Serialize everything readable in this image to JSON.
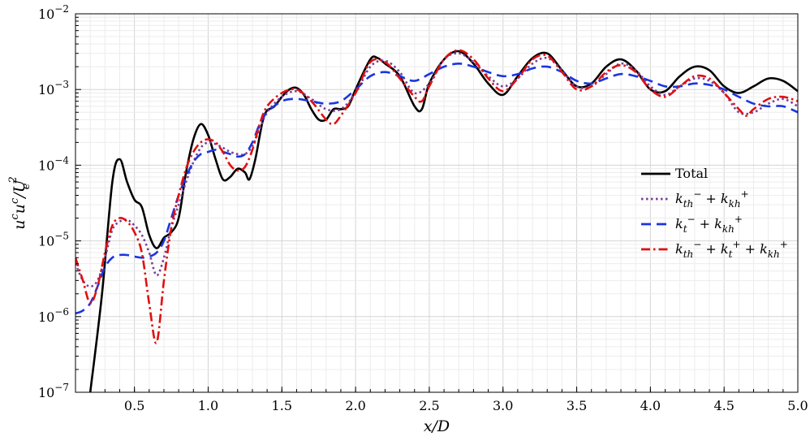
{
  "chart_data": {
    "type": "line",
    "title": "",
    "xlabel": "x/D",
    "ylabel": "u^c u^c / U_e^2",
    "xscale": "linear",
    "yscale": "log",
    "xlim": [
      0.1,
      5.0
    ],
    "ylim": [
      1e-07,
      0.01
    ],
    "grid": true,
    "legend_position": "right",
    "x_ticks": [
      {
        "value": 0.5,
        "label": "0.5"
      },
      {
        "value": 1.0,
        "label": "1.0"
      },
      {
        "value": 1.5,
        "label": "1.5"
      },
      {
        "value": 2.0,
        "label": "2.0"
      },
      {
        "value": 2.5,
        "label": "2.5"
      },
      {
        "value": 3.0,
        "label": "3.0"
      },
      {
        "value": 3.5,
        "label": "3.5"
      },
      {
        "value": 4.0,
        "label": "4.0"
      },
      {
        "value": 4.5,
        "label": "4.5"
      },
      {
        "value": 5.0,
        "label": "5.0"
      }
    ],
    "y_ticks": [
      {
        "exp": -7,
        "label": "10",
        "sup": "−7"
      },
      {
        "exp": -6,
        "label": "10",
        "sup": "−6"
      },
      {
        "exp": -5,
        "label": "10",
        "sup": "−5"
      },
      {
        "exp": -4,
        "label": "10",
        "sup": "−4"
      },
      {
        "exp": -3,
        "label": "10",
        "sup": "−3"
      },
      {
        "exp": -2,
        "label": "10",
        "sup": "−2"
      }
    ],
    "series": [
      {
        "name": "Total",
        "color": "#000000",
        "dash": "solid",
        "points": [
          [
            0.2,
            1e-07
          ],
          [
            0.28,
            2e-06
          ],
          [
            0.35,
            6e-05
          ],
          [
            0.4,
            0.00012
          ],
          [
            0.45,
            6e-05
          ],
          [
            0.5,
            3.5e-05
          ],
          [
            0.55,
            2.8e-05
          ],
          [
            0.6,
            1.2e-05
          ],
          [
            0.65,
            8e-06
          ],
          [
            0.7,
            1.1e-05
          ],
          [
            0.75,
            1.3e-05
          ],
          [
            0.8,
            2e-05
          ],
          [
            0.85,
            8e-05
          ],
          [
            0.9,
            0.00022
          ],
          [
            0.95,
            0.00035
          ],
          [
            1.0,
            0.00025
          ],
          [
            1.05,
            0.00012
          ],
          [
            1.1,
            6.5e-05
          ],
          [
            1.15,
            7e-05
          ],
          [
            1.2,
            9e-05
          ],
          [
            1.25,
            8e-05
          ],
          [
            1.28,
            6.5e-05
          ],
          [
            1.32,
            0.00012
          ],
          [
            1.38,
            0.00045
          ],
          [
            1.45,
            0.0006
          ],
          [
            1.5,
            0.0008
          ],
          [
            1.55,
            0.001
          ],
          [
            1.6,
            0.00105
          ],
          [
            1.65,
            0.00085
          ],
          [
            1.7,
            0.00055
          ],
          [
            1.75,
            0.0004
          ],
          [
            1.8,
            0.0004
          ],
          [
            1.85,
            0.00055
          ],
          [
            1.9,
            0.00055
          ],
          [
            1.95,
            0.0006
          ],
          [
            2.0,
            0.001
          ],
          [
            2.1,
            0.0025
          ],
          [
            2.15,
            0.0026
          ],
          [
            2.2,
            0.0022
          ],
          [
            2.3,
            0.0015
          ],
          [
            2.4,
            0.0006
          ],
          [
            2.45,
            0.00055
          ],
          [
            2.5,
            0.0012
          ],
          [
            2.6,
            0.0025
          ],
          [
            2.7,
            0.0032
          ],
          [
            2.8,
            0.0022
          ],
          [
            2.9,
            0.0012
          ],
          [
            3.0,
            0.00085
          ],
          [
            3.1,
            0.0015
          ],
          [
            3.2,
            0.0026
          ],
          [
            3.3,
            0.003
          ],
          [
            3.4,
            0.0018
          ],
          [
            3.5,
            0.0011
          ],
          [
            3.6,
            0.0012
          ],
          [
            3.7,
            0.002
          ],
          [
            3.8,
            0.0025
          ],
          [
            3.9,
            0.0018
          ],
          [
            4.0,
            0.001
          ],
          [
            4.1,
            0.00095
          ],
          [
            4.2,
            0.0015
          ],
          [
            4.3,
            0.002
          ],
          [
            4.4,
            0.0018
          ],
          [
            4.5,
            0.0011
          ],
          [
            4.6,
            0.0009
          ],
          [
            4.7,
            0.0011
          ],
          [
            4.8,
            0.0014
          ],
          [
            4.9,
            0.0013
          ],
          [
            5.0,
            0.00095
          ]
        ]
      },
      {
        "name": "k_th^- + k_kh^+",
        "color": "#7b3f98",
        "dash": "dotted",
        "points": [
          [
            0.1,
            5e-06
          ],
          [
            0.15,
            3e-06
          ],
          [
            0.2,
            2.5e-06
          ],
          [
            0.25,
            3e-06
          ],
          [
            0.3,
            6e-06
          ],
          [
            0.35,
            1.4e-05
          ],
          [
            0.4,
            1.8e-05
          ],
          [
            0.45,
            1.9e-05
          ],
          [
            0.5,
            1.6e-05
          ],
          [
            0.55,
            1.2e-05
          ],
          [
            0.6,
            7e-06
          ],
          [
            0.65,
            3.5e-06
          ],
          [
            0.7,
            6e-06
          ],
          [
            0.75,
            1.5e-05
          ],
          [
            0.8,
            3e-05
          ],
          [
            0.85,
            6e-05
          ],
          [
            0.9,
            0.00011
          ],
          [
            0.95,
            0.00017
          ],
          [
            1.0,
            0.0002
          ],
          [
            1.05,
            0.00019
          ],
          [
            1.1,
            0.00017
          ],
          [
            1.15,
            0.00015
          ],
          [
            1.2,
            0.00014
          ],
          [
            1.25,
            0.00014
          ],
          [
            1.3,
            0.00018
          ],
          [
            1.35,
            0.0003
          ],
          [
            1.4,
            0.0005
          ],
          [
            1.5,
            0.0008
          ],
          [
            1.6,
            0.00095
          ],
          [
            1.7,
            0.00075
          ],
          [
            1.8,
            0.00055
          ],
          [
            1.9,
            0.00055
          ],
          [
            2.0,
            0.0009
          ],
          [
            2.1,
            0.002
          ],
          [
            2.2,
            0.0024
          ],
          [
            2.3,
            0.0017
          ],
          [
            2.4,
            0.0009
          ],
          [
            2.5,
            0.0012
          ],
          [
            2.6,
            0.0025
          ],
          [
            2.7,
            0.003
          ],
          [
            2.8,
            0.0023
          ],
          [
            2.9,
            0.0015
          ],
          [
            3.0,
            0.0011
          ],
          [
            3.1,
            0.0014
          ],
          [
            3.2,
            0.0022
          ],
          [
            3.3,
            0.0026
          ],
          [
            3.4,
            0.0018
          ],
          [
            3.5,
            0.0011
          ],
          [
            3.6,
            0.0011
          ],
          [
            3.7,
            0.0016
          ],
          [
            3.8,
            0.0022
          ],
          [
            3.9,
            0.0018
          ],
          [
            4.0,
            0.0011
          ],
          [
            4.1,
            0.00085
          ],
          [
            4.2,
            0.0011
          ],
          [
            4.3,
            0.0014
          ],
          [
            4.4,
            0.0013
          ],
          [
            4.5,
            0.0009
          ],
          [
            4.6,
            0.0005
          ],
          [
            4.7,
            0.0005
          ],
          [
            4.8,
            0.00065
          ],
          [
            4.9,
            0.00075
          ],
          [
            5.0,
            0.0006
          ]
        ]
      },
      {
        "name": "k_t^- + k_kh^+",
        "color": "#1a35e0",
        "dash": "dashed",
        "points": [
          [
            0.1,
            1.1e-06
          ],
          [
            0.15,
            1.2e-06
          ],
          [
            0.2,
            1.5e-06
          ],
          [
            0.25,
            2.5e-06
          ],
          [
            0.3,
            4.5e-06
          ],
          [
            0.35,
            6e-06
          ],
          [
            0.4,
            6.5e-06
          ],
          [
            0.45,
            6.5e-06
          ],
          [
            0.5,
            6.2e-06
          ],
          [
            0.55,
            6e-06
          ],
          [
            0.6,
            6.2e-06
          ],
          [
            0.65,
            7e-06
          ],
          [
            0.7,
            1e-05
          ],
          [
            0.75,
            2e-05
          ],
          [
            0.8,
            4e-05
          ],
          [
            0.85,
            7e-05
          ],
          [
            0.9,
            0.00011
          ],
          [
            0.95,
            0.00014
          ],
          [
            1.0,
            0.00015
          ],
          [
            1.05,
            0.00016
          ],
          [
            1.1,
            0.00015
          ],
          [
            1.15,
            0.00014
          ],
          [
            1.2,
            0.00013
          ],
          [
            1.25,
            0.00014
          ],
          [
            1.3,
            0.0002
          ],
          [
            1.35,
            0.00035
          ],
          [
            1.4,
            0.0005
          ],
          [
            1.5,
            0.0007
          ],
          [
            1.6,
            0.00075
          ],
          [
            1.7,
            0.0007
          ],
          [
            1.8,
            0.00065
          ],
          [
            1.9,
            0.0007
          ],
          [
            2.0,
            0.001
          ],
          [
            2.1,
            0.0015
          ],
          [
            2.2,
            0.0017
          ],
          [
            2.3,
            0.0015
          ],
          [
            2.4,
            0.0013
          ],
          [
            2.5,
            0.0016
          ],
          [
            2.6,
            0.002
          ],
          [
            2.7,
            0.0022
          ],
          [
            2.8,
            0.002
          ],
          [
            2.9,
            0.0017
          ],
          [
            3.0,
            0.0015
          ],
          [
            3.1,
            0.0016
          ],
          [
            3.2,
            0.0019
          ],
          [
            3.3,
            0.002
          ],
          [
            3.4,
            0.0017
          ],
          [
            3.5,
            0.0013
          ],
          [
            3.6,
            0.0012
          ],
          [
            3.7,
            0.0014
          ],
          [
            3.8,
            0.0016
          ],
          [
            3.9,
            0.0015
          ],
          [
            4.0,
            0.0013
          ],
          [
            4.1,
            0.0011
          ],
          [
            4.2,
            0.0011
          ],
          [
            4.3,
            0.0012
          ],
          [
            4.4,
            0.00115
          ],
          [
            4.5,
            0.001
          ],
          [
            4.6,
            0.0008
          ],
          [
            4.7,
            0.00065
          ],
          [
            4.8,
            0.0006
          ],
          [
            4.9,
            0.0006
          ],
          [
            5.0,
            0.0005
          ]
        ]
      },
      {
        "name": "k_th^- + k_t^+ + k_kh^+",
        "color": "#e01010",
        "dash": "dashdot",
        "points": [
          [
            0.1,
            6e-06
          ],
          [
            0.15,
            3e-06
          ],
          [
            0.2,
            1.5e-06
          ],
          [
            0.25,
            2.5e-06
          ],
          [
            0.3,
            7e-06
          ],
          [
            0.35,
            1.6e-05
          ],
          [
            0.4,
            2e-05
          ],
          [
            0.45,
            1.8e-05
          ],
          [
            0.5,
            1.3e-05
          ],
          [
            0.55,
            7e-06
          ],
          [
            0.6,
            1.5e-06
          ],
          [
            0.65,
            4.5e-07
          ],
          [
            0.7,
            3e-06
          ],
          [
            0.75,
            1.5e-05
          ],
          [
            0.8,
            4e-05
          ],
          [
            0.85,
            9e-05
          ],
          [
            0.9,
            0.00015
          ],
          [
            0.95,
            0.0002
          ],
          [
            1.0,
            0.00022
          ],
          [
            1.05,
            0.0002
          ],
          [
            1.1,
            0.00015
          ],
          [
            1.15,
            0.0001
          ],
          [
            1.2,
            8.5e-05
          ],
          [
            1.25,
            9.5e-05
          ],
          [
            1.3,
            0.00016
          ],
          [
            1.35,
            0.00035
          ],
          [
            1.4,
            0.0006
          ],
          [
            1.5,
            0.0009
          ],
          [
            1.6,
            0.001
          ],
          [
            1.7,
            0.0007
          ],
          [
            1.8,
            0.0004
          ],
          [
            1.85,
            0.00035
          ],
          [
            1.9,
            0.00045
          ],
          [
            2.0,
            0.0009
          ],
          [
            2.1,
            0.0023
          ],
          [
            2.2,
            0.0023
          ],
          [
            2.3,
            0.0014
          ],
          [
            2.4,
            0.0008
          ],
          [
            2.45,
            0.0007
          ],
          [
            2.5,
            0.0011
          ],
          [
            2.6,
            0.0025
          ],
          [
            2.7,
            0.0033
          ],
          [
            2.8,
            0.0025
          ],
          [
            2.9,
            0.0014
          ],
          [
            3.0,
            0.00095
          ],
          [
            3.1,
            0.0014
          ],
          [
            3.2,
            0.0025
          ],
          [
            3.3,
            0.0028
          ],
          [
            3.4,
            0.0017
          ],
          [
            3.5,
            0.001
          ],
          [
            3.6,
            0.0011
          ],
          [
            3.7,
            0.0017
          ],
          [
            3.8,
            0.0021
          ],
          [
            3.9,
            0.0017
          ],
          [
            4.0,
            0.001
          ],
          [
            4.1,
            0.0008
          ],
          [
            4.2,
            0.0011
          ],
          [
            4.3,
            0.0015
          ],
          [
            4.4,
            0.0014
          ],
          [
            4.5,
            0.0009
          ],
          [
            4.6,
            0.00055
          ],
          [
            4.65,
            0.00045
          ],
          [
            4.7,
            0.00055
          ],
          [
            4.8,
            0.00075
          ],
          [
            4.9,
            0.0008
          ],
          [
            5.0,
            0.0007
          ]
        ]
      }
    ]
  }
}
